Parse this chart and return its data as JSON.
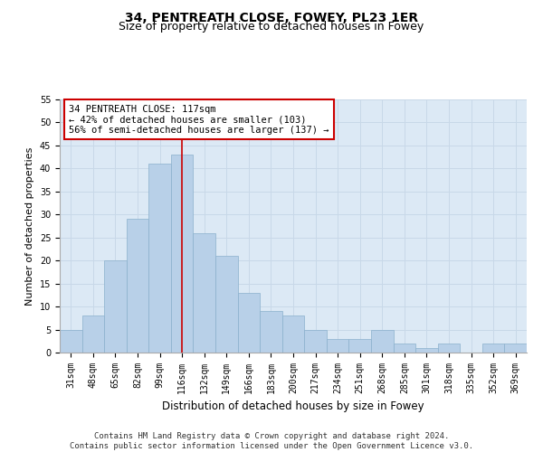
{
  "title": "34, PENTREATH CLOSE, FOWEY, PL23 1ER",
  "subtitle": "Size of property relative to detached houses in Fowey",
  "xlabel": "Distribution of detached houses by size in Fowey",
  "ylabel": "Number of detached properties",
  "categories": [
    "31sqm",
    "48sqm",
    "65sqm",
    "82sqm",
    "99sqm",
    "116sqm",
    "132sqm",
    "149sqm",
    "166sqm",
    "183sqm",
    "200sqm",
    "217sqm",
    "234sqm",
    "251sqm",
    "268sqm",
    "285sqm",
    "301sqm",
    "318sqm",
    "335sqm",
    "352sqm",
    "369sqm"
  ],
  "values": [
    5,
    8,
    20,
    29,
    41,
    43,
    26,
    21,
    13,
    9,
    8,
    5,
    3,
    3,
    5,
    2,
    1,
    2,
    0,
    2,
    2
  ],
  "bar_color": "#b8d0e8",
  "bar_edge_color": "#8ab0cc",
  "vline_x": 5.0,
  "vline_color": "#cc0000",
  "annotation_text": "34 PENTREATH CLOSE: 117sqm\n← 42% of detached houses are smaller (103)\n56% of semi-detached houses are larger (137) →",
  "annotation_box_color": "#ffffff",
  "annotation_box_edge": "#cc0000",
  "ylim": [
    0,
    55
  ],
  "yticks": [
    0,
    5,
    10,
    15,
    20,
    25,
    30,
    35,
    40,
    45,
    50,
    55
  ],
  "grid_color": "#c8d8e8",
  "bg_color": "#dce9f5",
  "footer": "Contains HM Land Registry data © Crown copyright and database right 2024.\nContains public sector information licensed under the Open Government Licence v3.0.",
  "title_fontsize": 10,
  "subtitle_fontsize": 9,
  "xlabel_fontsize": 8.5,
  "ylabel_fontsize": 8,
  "tick_fontsize": 7,
  "annotation_fontsize": 7.5,
  "footer_fontsize": 6.5
}
